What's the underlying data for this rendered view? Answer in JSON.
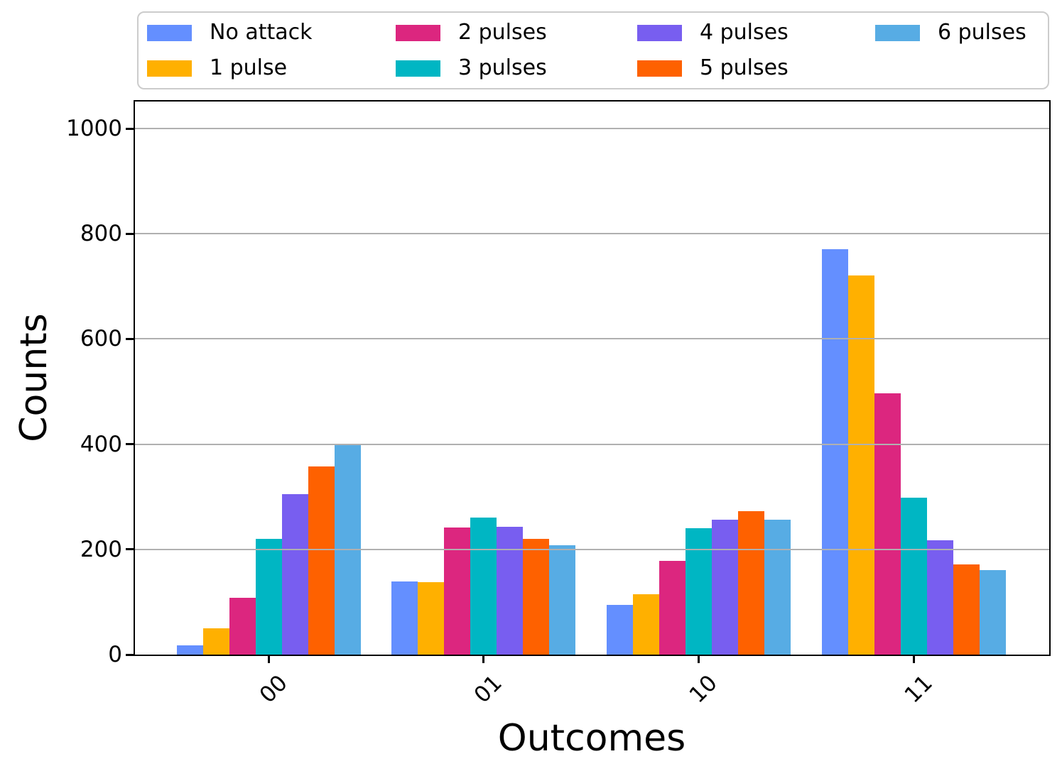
{
  "chart_data": {
    "type": "bar",
    "title": "",
    "xlabel": "Outcomes",
    "ylabel": "Counts",
    "categories": [
      "00",
      "01",
      "10",
      "11"
    ],
    "series": [
      {
        "name": "No attack",
        "color": "#648FFF",
        "values": [
          18,
          139,
          95,
          771
        ]
      },
      {
        "name": "1 pulse",
        "color": "#FFB000",
        "values": [
          50,
          137,
          115,
          720
        ]
      },
      {
        "name": "2 pulses",
        "color": "#DC267F",
        "values": [
          108,
          241,
          178,
          497
        ]
      },
      {
        "name": "3 pulses",
        "color": "#00B6C3",
        "values": [
          220,
          261,
          240,
          298
        ]
      },
      {
        "name": "4 pulses",
        "color": "#785EF0",
        "values": [
          305,
          243,
          257,
          217
        ]
      },
      {
        "name": "5 pulses",
        "color": "#FE6100",
        "values": [
          357,
          220,
          273,
          172
        ]
      },
      {
        "name": "6 pulses",
        "color": "#57ACE4",
        "values": [
          399,
          208,
          257,
          160
        ]
      }
    ],
    "yticks": [
      0,
      200,
      400,
      600,
      800,
      1000
    ],
    "ytick_labels": [
      "0",
      "200",
      "400",
      "600",
      "800",
      "1000"
    ],
    "ylim": [
      0,
      1050
    ],
    "grid": true,
    "grid_color": "#b0b0b0",
    "legend_position": "top",
    "legend_columns": 4,
    "legend_order_column_major": true
  }
}
